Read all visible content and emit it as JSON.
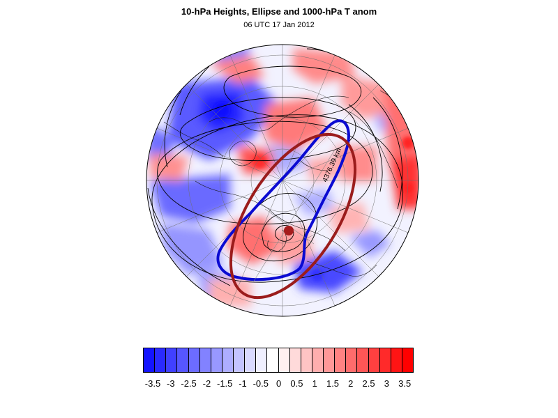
{
  "figure": {
    "title": "10-hPa Heights, Ellipse and 1000-hPa T anom",
    "subtitle": "06 UTC 17 Jan 2012"
  },
  "map": {
    "projection": "polar stereographic (north pole)",
    "fields": [
      "10-hPa geopotential height contours",
      "1000-hPa temperature anomaly shading"
    ],
    "ellipses": [
      {
        "name": "blue-ellipse",
        "color": "#0a0ad2"
      },
      {
        "name": "red-ellipse",
        "color": "#9b1c1c"
      }
    ],
    "centroid_color": "#a61c1c",
    "annotation": "4376.39 km"
  },
  "colorbar": {
    "colors": [
      "#1414ff",
      "#2a2aff",
      "#4040ff",
      "#5656ff",
      "#6c6cff",
      "#8282ff",
      "#9898ff",
      "#aeaeff",
      "#c4c4ff",
      "#dadaff",
      "#f0f0ff",
      "#ffffff",
      "#fff0f0",
      "#ffdada",
      "#ffc4c4",
      "#ffaeae",
      "#ff9898",
      "#ff8282",
      "#ff6c6c",
      "#ff5656",
      "#ff4040",
      "#ff2a2a",
      "#ff1414",
      "#ff0000"
    ],
    "labels": [
      "-3.5",
      "-3",
      "-2.5",
      "-2",
      "-1.5",
      "-1",
      "-0.5",
      "0",
      "0.5",
      "1",
      "1.5",
      "2",
      "2.5",
      "3",
      "3.5"
    ]
  }
}
